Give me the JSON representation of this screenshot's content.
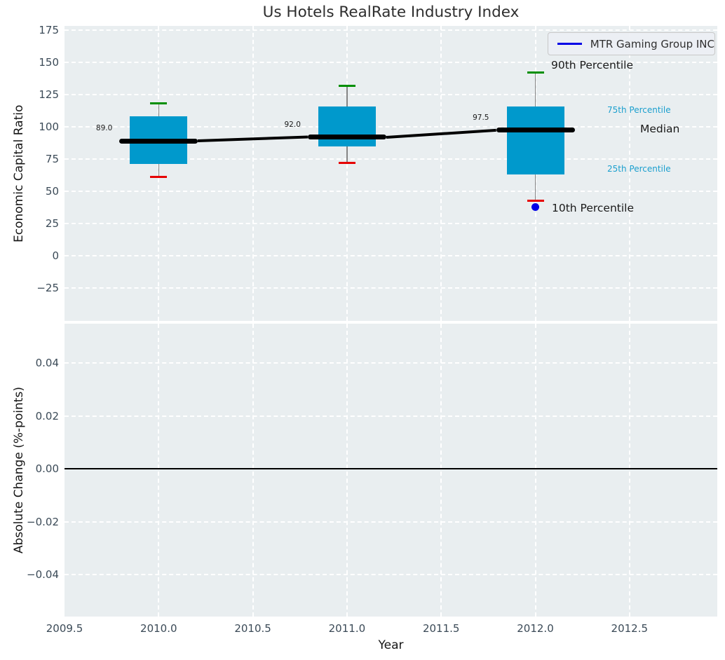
{
  "chart_data": {
    "type": "box",
    "title": "Us Hotels RealRate Industry Index",
    "xlabel": "Year",
    "grid": true,
    "xlim": [
      2009.5,
      2012.97
    ],
    "x_ticks": [
      {
        "label": "2009.5",
        "value": 2009.5
      },
      {
        "label": "2010.0",
        "value": 2010.0
      },
      {
        "label": "2010.5",
        "value": 2010.5
      },
      {
        "label": "2011.0",
        "value": 2011.0
      },
      {
        "label": "2011.5",
        "value": 2011.5
      },
      {
        "label": "2012.0",
        "value": 2012.0
      },
      {
        "label": "2012.5",
        "value": 2012.5
      }
    ],
    "legend": {
      "label": "MTR Gaming Group INC",
      "line_color": "#0000e6",
      "position": "upper right"
    },
    "colors": {
      "box_fill": "#0099cc",
      "p90_cap": "#008f00",
      "p10_cap": "#e60000",
      "whisker": "#858585",
      "median_line": "#000000",
      "company_point": "#0000e6",
      "axes_background": "#e9eef0",
      "percentile_text_accent": "#1b9fce"
    },
    "panels": [
      {
        "id": "capital_ratio",
        "ylabel": "Economic Capital Ratio",
        "ylim": [
          -50.5,
          178.5
        ],
        "y_ticks": [
          {
            "label": "175",
            "value": 175
          },
          {
            "label": "150",
            "value": 150
          },
          {
            "label": "125",
            "value": 125
          },
          {
            "label": "100",
            "value": 100
          },
          {
            "label": "75",
            "value": 75
          },
          {
            "label": "50",
            "value": 50
          },
          {
            "label": "25",
            "value": 25
          },
          {
            "label": "0",
            "value": 0
          },
          {
            "label": "−25",
            "value": -25
          }
        ],
        "boxes": [
          {
            "year": 2010,
            "p90": 118,
            "q75": 108,
            "median": 89.0,
            "q25": 71,
            "p10": 61,
            "median_label": "89.0"
          },
          {
            "year": 2011,
            "p90": 132,
            "q75": 116,
            "median": 92.0,
            "q25": 85,
            "p10": 72,
            "median_label": "92.0"
          },
          {
            "year": 2012,
            "p90": 142,
            "q75": 116,
            "median": 97.5,
            "q25": 63,
            "p10": 42.5,
            "median_label": "97.5"
          }
        ],
        "company_points": [
          {
            "year": 2012,
            "value": 38
          }
        ],
        "percentile_labels": [
          {
            "id": "p90",
            "text": "90th Percentile",
            "color": "#1a1a1a"
          },
          {
            "id": "p75",
            "text": "75th Percentile",
            "color": "#1b9fce"
          },
          {
            "id": "median",
            "text": "Median",
            "color": "#1a1a1a"
          },
          {
            "id": "p25",
            "text": "25th Percentile",
            "color": "#1b9fce"
          },
          {
            "id": "p10",
            "text": "10th Percentile",
            "color": "#1a1a1a"
          }
        ]
      },
      {
        "id": "absolute_change",
        "ylabel": "Absolute Change (%-points)",
        "ylim": [
          -0.056,
          0.055
        ],
        "y_ticks": [
          {
            "label": "0.04",
            "value": 0.04
          },
          {
            "label": "0.02",
            "value": 0.02
          },
          {
            "label": "0.00",
            "value": 0.0
          },
          {
            "label": "−0.02",
            "value": -0.02
          },
          {
            "label": "−0.04",
            "value": -0.04
          }
        ],
        "zero_line": 0.0
      }
    ]
  }
}
